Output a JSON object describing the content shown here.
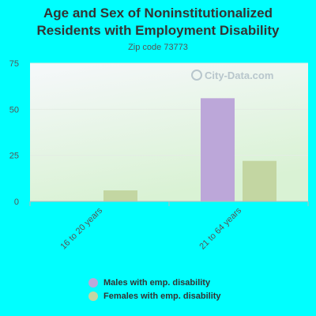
{
  "title_line1": "Age and Sex of Noninstitutionalized",
  "title_line2": "Residents with Employment Disability",
  "subtitle": "Zip code 73773",
  "watermark": "City-Data.com",
  "colors": {
    "males": "#bca7d9",
    "females": "#c3d6a2",
    "background": "#00ffff",
    "plot_bg_top": "#f6f8fb",
    "plot_bg_bottom": "#d9f2d4"
  },
  "chart_data": {
    "type": "bar",
    "categories": [
      "16 to 20 years",
      "21 to 64 years"
    ],
    "series": [
      {
        "name": "Males with emp. disability",
        "values": [
          0,
          56
        ]
      },
      {
        "name": "Females with emp. disability",
        "values": [
          6,
          22
        ]
      }
    ],
    "ylim": [
      0,
      75
    ],
    "yticks": [
      "0",
      "25",
      "50",
      "75"
    ],
    "legend_position": "bottom",
    "grid": true
  }
}
